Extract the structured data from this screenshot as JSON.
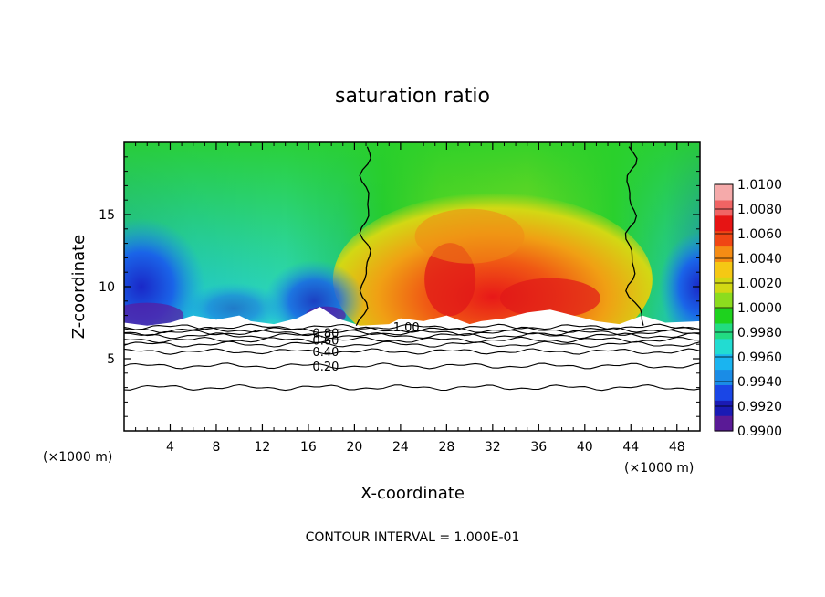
{
  "chart_data": {
    "type": "heatmap",
    "title": "saturation ratio",
    "xlabel": "X-coordinate",
    "ylabel": "Z-coordinate",
    "x_unit": "(×1000 m)",
    "footer": "CONTOUR INTERVAL = 1.000E-01",
    "xlim": [
      0,
      50
    ],
    "ylim": [
      0,
      20
    ],
    "x_ticks": [
      4,
      8,
      12,
      16,
      20,
      24,
      28,
      32,
      36,
      40,
      44,
      48
    ],
    "y_ticks": [
      5,
      10,
      15
    ],
    "colorbar": {
      "min": 0.99,
      "max": 1.01,
      "labels": [
        "0.9900",
        "0.9920",
        "0.9940",
        "0.9960",
        "0.9980",
        "1.0000",
        "1.0020",
        "1.0040",
        "1.0060",
        "1.0080",
        "1.0100"
      ]
    },
    "contour_lines": [
      {
        "label": "0.20",
        "level": 0.2,
        "z": 4.5
      },
      {
        "label": "0.40",
        "level": 0.4,
        "z": 5.5
      },
      {
        "label": "0.60",
        "level": 0.6,
        "z": 6.3
      },
      {
        "label": "0.80",
        "level": 0.8,
        "z": 6.8
      },
      {
        "label": "1.00",
        "level": 1.0,
        "z": 7.2
      }
    ],
    "extra_contour_levels_z": [
      3.0,
      6.0,
      6.6,
      7.0
    ],
    "contour_1_00_vertical_x": [
      21,
      44
    ],
    "field_samples": [
      {
        "x": 3,
        "z": 15,
        "value": 0.9965
      },
      {
        "x": 10,
        "z": 12,
        "value": 0.996
      },
      {
        "x": 17,
        "z": 10,
        "value": 0.9955
      },
      {
        "x": 18.5,
        "z": 8,
        "value": 0.9925
      },
      {
        "x": 28.5,
        "z": 11,
        "value": 1.0065
      },
      {
        "x": 37,
        "z": 9,
        "value": 1.006
      },
      {
        "x": 30,
        "z": 14,
        "value": 1.0045
      },
      {
        "x": 46,
        "z": 15,
        "value": 0.998
      },
      {
        "x": 49,
        "z": 9,
        "value": 0.9935
      }
    ]
  }
}
